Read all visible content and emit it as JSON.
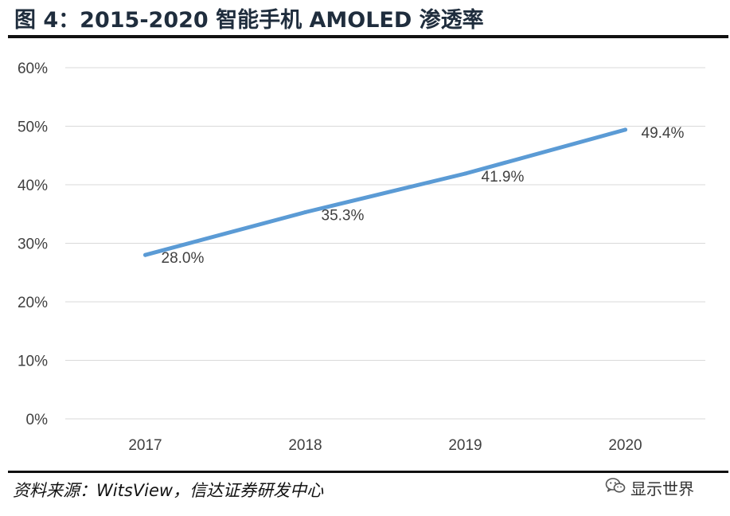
{
  "header": {
    "title": "图 4：2015-2020 智能手机 AMOLED 渗透率"
  },
  "footer": {
    "source": "资料来源：WitsView，信达证券研发中心",
    "watermark_label": "显示世界",
    "watermark_icon": "wechat-icon"
  },
  "colors": {
    "line": "#5b9bd5",
    "grid": "#d9d9d9",
    "text": "#404040",
    "title": "#1f2d3d"
  },
  "chart_data": {
    "type": "line",
    "categories": [
      "2017",
      "2018",
      "2019",
      "2020"
    ],
    "series": [
      {
        "values": [
          28.0,
          35.3,
          41.9,
          49.4
        ],
        "data_labels": [
          "28.0%",
          "35.3%",
          "41.9%",
          "49.4%"
        ]
      }
    ],
    "y_ticks": [
      "0%",
      "10%",
      "20%",
      "30%",
      "40%",
      "50%",
      "60%"
    ],
    "ylim": [
      0,
      60
    ],
    "xlabel": "",
    "ylabel": "",
    "grid": true,
    "legend": "none"
  }
}
